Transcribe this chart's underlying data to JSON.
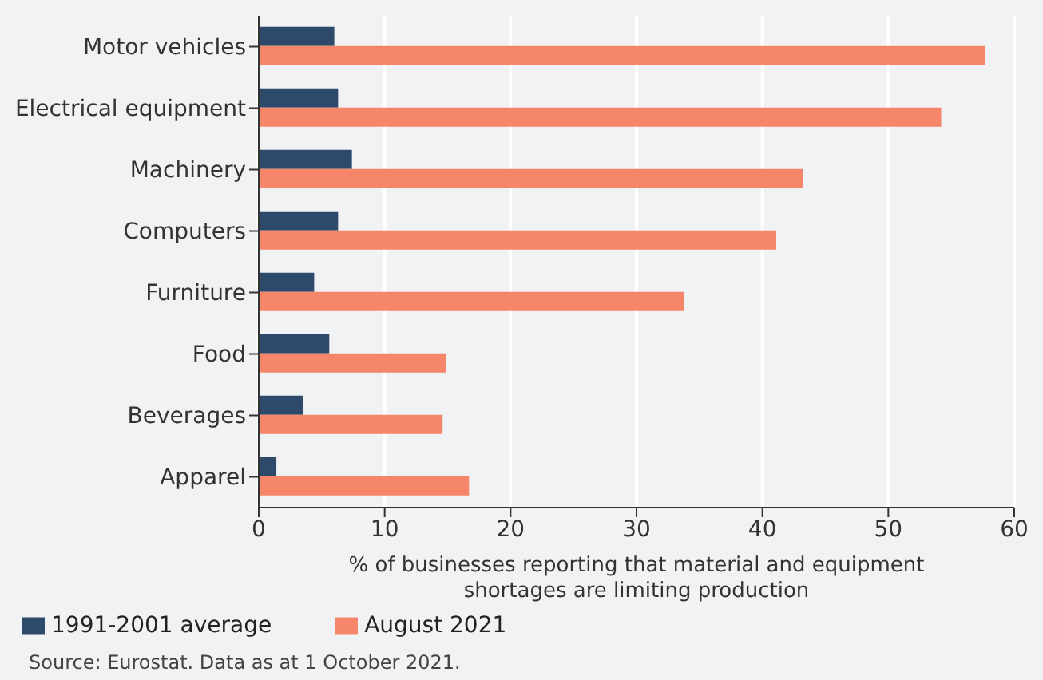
{
  "chart_data": {
    "type": "bar",
    "orientation": "horizontal",
    "xlabel": "% of businesses reporting that material and equipment\nshortages are limiting production",
    "categories": [
      "Motor vehicles",
      "Electrical equipment",
      "Machinery",
      "Computers",
      "Furniture",
      "Food",
      "Beverages",
      "Apparel"
    ],
    "series": [
      {
        "name": "1991-2001 average",
        "color": "#2e4a6b",
        "values": [
          6.0,
          6.3,
          7.4,
          6.3,
          4.4,
          5.6,
          3.5,
          1.4
        ]
      },
      {
        "name": "August 2021",
        "color": "#f5866a",
        "values": [
          57.7,
          54.2,
          43.2,
          41.1,
          33.8,
          14.9,
          14.6,
          16.7
        ]
      }
    ],
    "xlim": [
      0,
      60
    ],
    "xticks": [
      0,
      10,
      20,
      30,
      40,
      50,
      60
    ],
    "grid": "x",
    "legend": "bottom left",
    "annotations": [
      "Source: Eurostat. Data as at 1 October 2021."
    ]
  }
}
